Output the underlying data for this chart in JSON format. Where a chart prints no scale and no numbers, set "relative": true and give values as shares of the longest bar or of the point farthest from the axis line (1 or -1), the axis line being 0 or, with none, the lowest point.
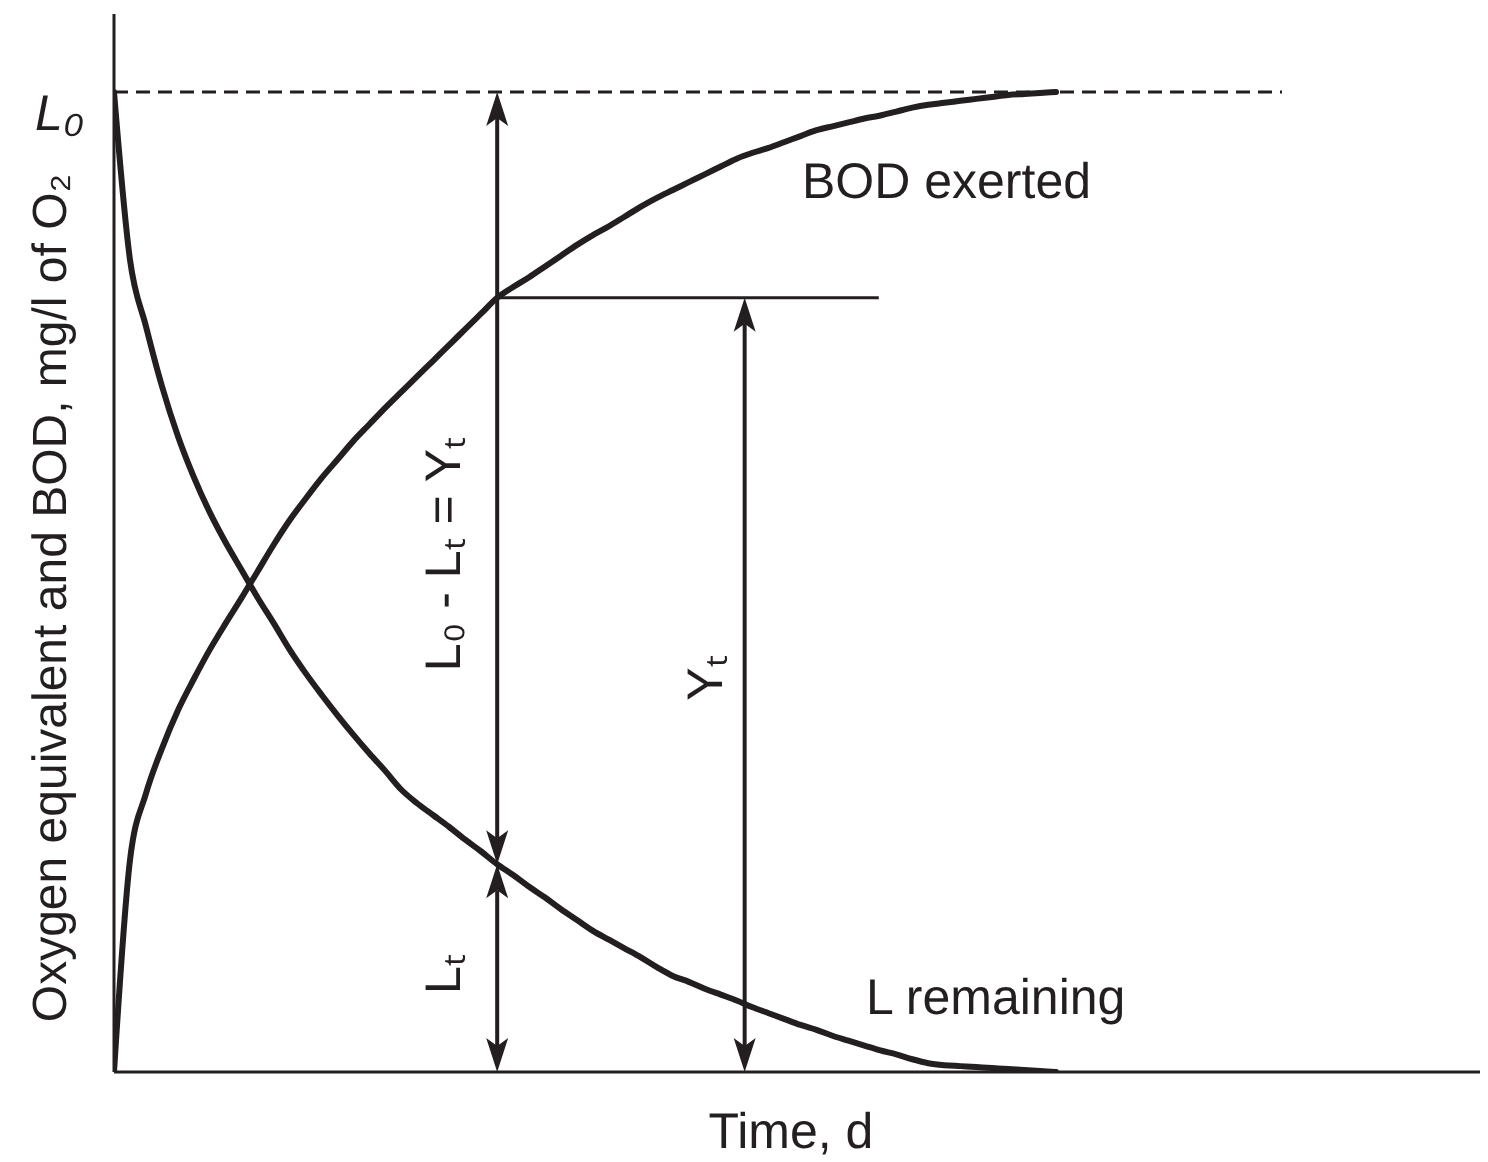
{
  "chart_data": {
    "type": "line",
    "relative": true,
    "xlabel": "Time, d",
    "ylabel": "Oxygen equivalent and BOD, mg/l of O₂",
    "marker": "none",
    "categories": [
      null,
      null,
      null,
      null,
      null,
      null,
      null,
      null,
      null,
      null,
      null,
      null,
      null,
      null,
      null,
      null,
      null,
      null,
      null,
      null,
      null,
      null,
      null,
      null,
      null,
      null,
      null,
      null,
      null,
      null,
      null,
      null,
      null,
      null,
      null,
      null,
      null,
      null,
      null,
      null,
      null,
      null,
      null,
      null,
      null,
      null,
      null,
      null,
      null,
      null,
      null,
      null,
      null,
      null,
      null,
      null,
      null,
      null,
      null,
      null
    ],
    "series": [
      {
        "name": "BOD exerted",
        "color": "#231f20",
        "values": [
          0,
          0.216,
          0.284,
          0.33,
          0.369,
          0.401,
          0.431,
          0.458,
          0.484,
          0.511,
          0.538,
          0.563,
          0.585,
          0.606,
          0.625,
          0.644,
          0.661,
          0.678,
          0.694,
          0.71,
          0.726,
          0.742,
          0.758,
          0.774,
          0.79,
          0.801,
          0.811,
          0.822,
          0.833,
          0.844,
          0.854,
          0.863,
          0.873,
          0.883,
          0.892,
          0.9,
          0.908,
          0.916,
          0.924,
          0.932,
          0.938,
          0.943,
          0.949,
          0.955,
          0.961,
          0.965,
          0.969,
          0.973,
          0.976,
          0.98,
          0.984,
          0.987,
          0.989,
          0.991,
          0.993,
          0.995,
          0.997,
          0.998,
          0.999,
          1
        ]
      },
      {
        "name": "L remaining",
        "color": "#231f20",
        "values": [
          1,
          0.829,
          0.761,
          0.7,
          0.649,
          0.607,
          0.571,
          0.54,
          0.512,
          0.484,
          0.458,
          0.431,
          0.407,
          0.385,
          0.364,
          0.344,
          0.325,
          0.307,
          0.288,
          0.274,
          0.262,
          0.25,
          0.237,
          0.225,
          0.212,
          0.201,
          0.189,
          0.178,
          0.166,
          0.155,
          0.144,
          0.135,
          0.126,
          0.117,
          0.107,
          0.098,
          0.092,
          0.085,
          0.079,
          0.073,
          0.066,
          0.06,
          0.054,
          0.048,
          0.043,
          0.037,
          0.032,
          0.027,
          0.022,
          0.018,
          0.013,
          0.009,
          0.007,
          0.006,
          0.005,
          0.004,
          0.003,
          0.002,
          0.001,
          0
        ]
      }
    ],
    "ref_lines": [
      {
        "axis": "y",
        "value": 1,
        "label": "L₀",
        "line_style": "dashed",
        "color": "#231f20"
      }
    ],
    "annotations": [
      "L₀ - Lₜ = Yₜ",
      "Yₜ",
      "Lₜ"
    ]
  }
}
